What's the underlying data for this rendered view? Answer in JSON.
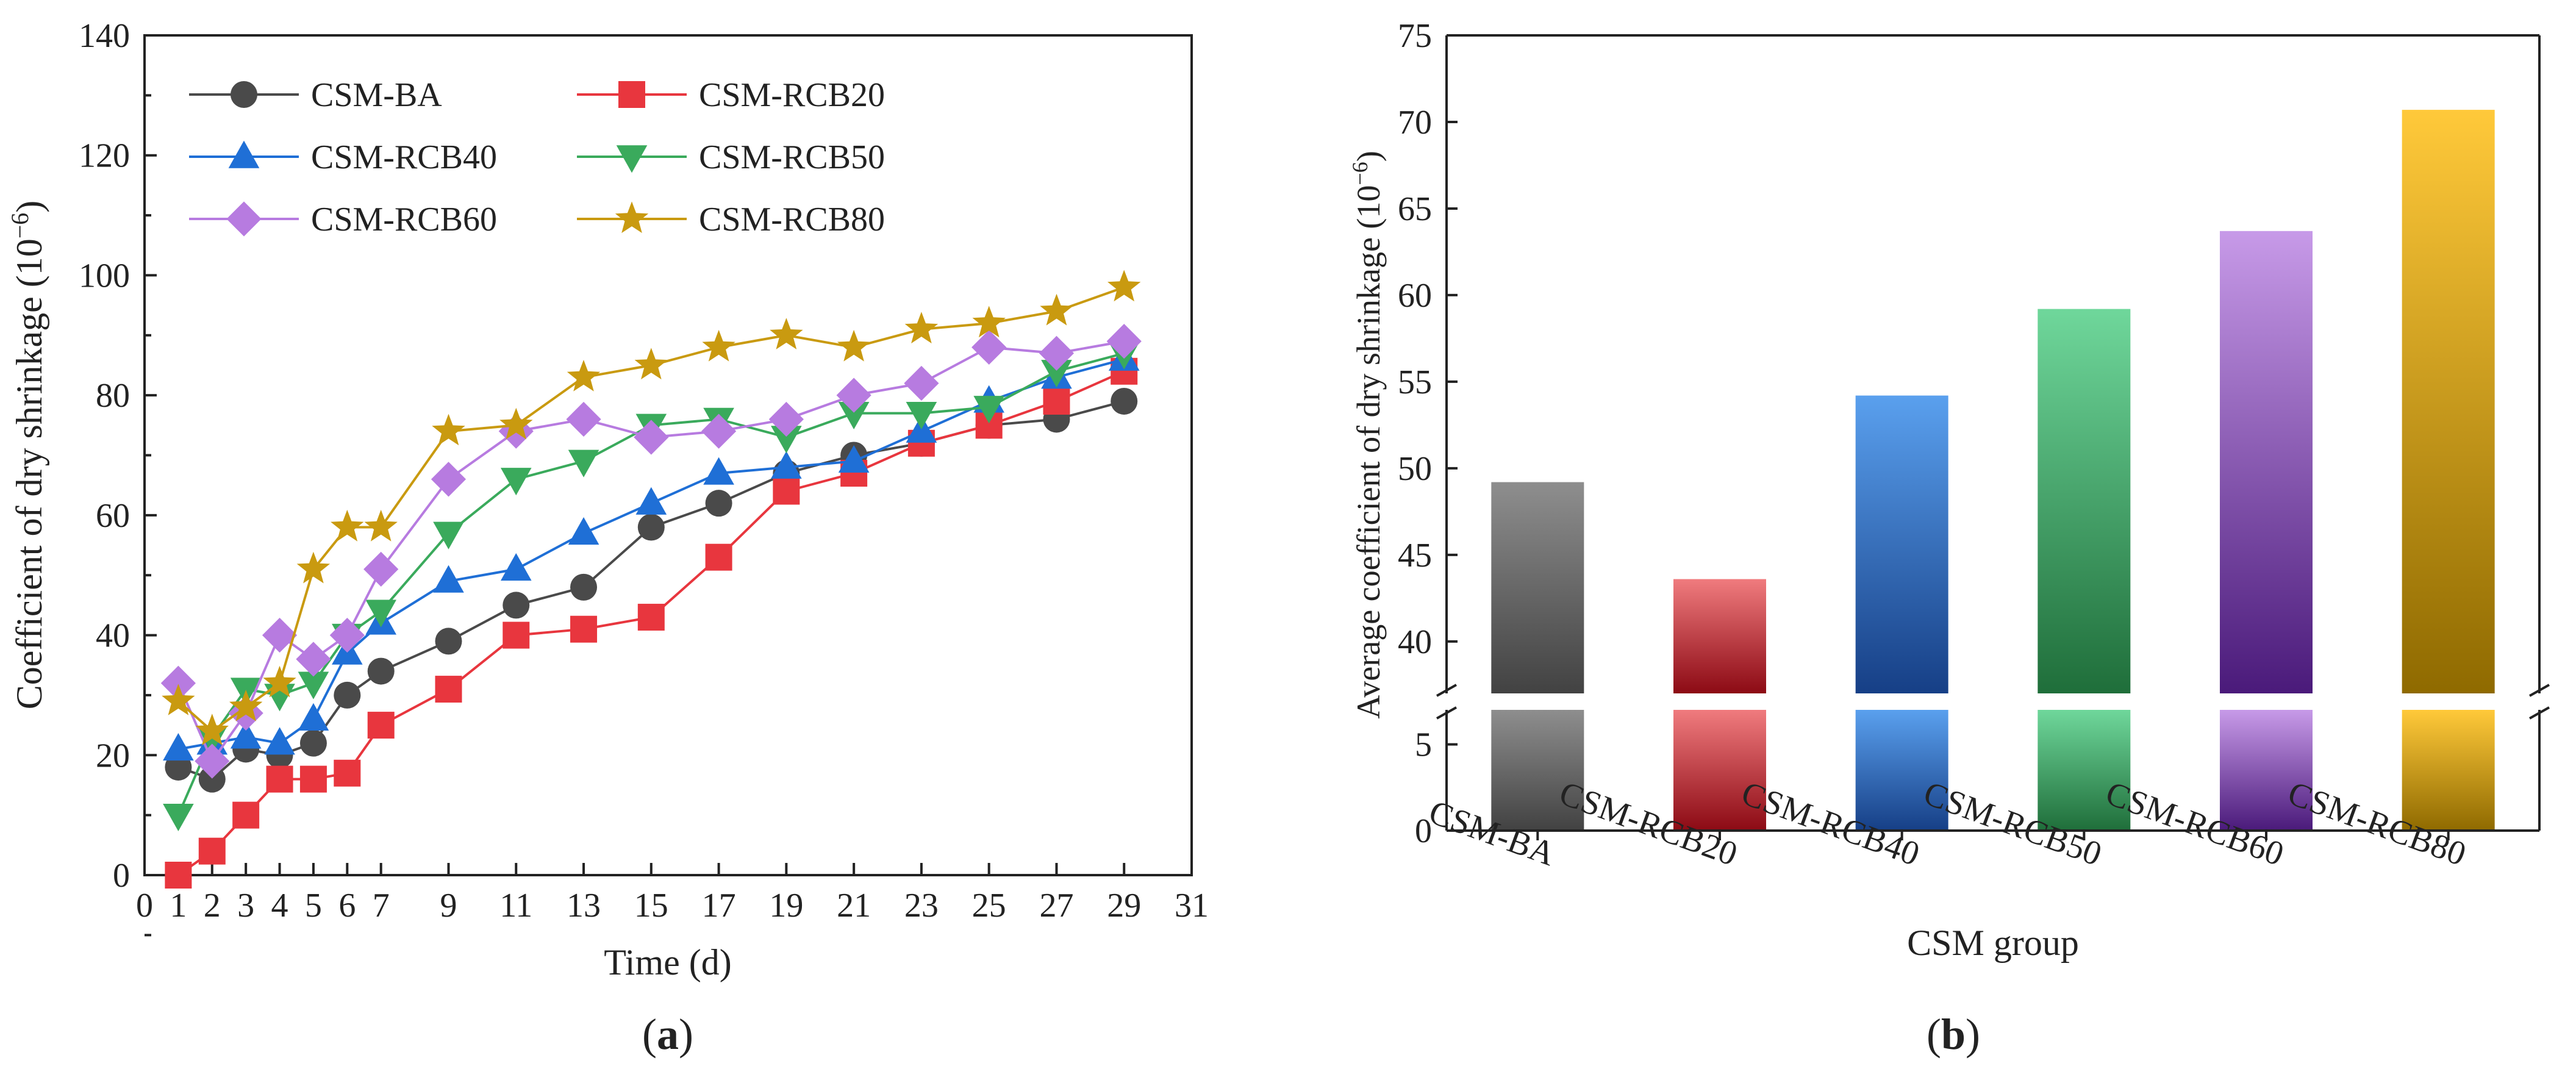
{
  "figure": {
    "panel_a_label_open": "(",
    "panel_a_label_letter": "a",
    "panel_a_label_close": ")",
    "panel_b_label_open": "(",
    "panel_b_label_letter": "b",
    "panel_b_label_close": ")"
  },
  "chart_data": [
    {
      "type": "line",
      "panel": "a",
      "title": "",
      "xlabel": "Time (d)",
      "ylabel_main": "Coefficient of dry shrinkage (10",
      "ylabel_exp": "−6",
      "ylabel_tail": ")",
      "xlim": [
        0,
        31
      ],
      "ylim": [
        0,
        140
      ],
      "xticks": [
        "0",
        "1",
        "2",
        "3",
        "4",
        "5",
        "6",
        "7",
        "9",
        "11",
        "13",
        "15",
        "17",
        "19",
        "21",
        "23",
        "25",
        "27",
        "29",
        "31"
      ],
      "yticks": [
        "0",
        "20",
        "40",
        "60",
        "80",
        "100",
        "120",
        "140"
      ],
      "x": [
        1,
        2,
        3,
        4,
        5,
        6,
        7,
        9,
        11,
        13,
        15,
        17,
        19,
        21,
        23,
        25,
        27,
        29
      ],
      "legend_position": "top-left",
      "series": [
        {
          "name": "CSM-BA",
          "color": "#4a4a4a",
          "marker": "circle",
          "values": [
            18,
            16,
            21,
            20,
            22,
            30,
            34,
            39,
            45,
            48,
            58,
            62,
            67,
            70,
            72,
            75,
            76,
            79
          ]
        },
        {
          "name": "CSM-RCB20",
          "color": "#e8363e",
          "marker": "square",
          "values": [
            0,
            4,
            10,
            16,
            16,
            17,
            25,
            31,
            40,
            41,
            43,
            53,
            64,
            67,
            72,
            75,
            79,
            84
          ]
        },
        {
          "name": "CSM-RCB40",
          "color": "#1f6fd6",
          "marker": "triangle-up",
          "values": [
            21,
            22,
            23,
            22,
            26,
            37,
            42,
            49,
            51,
            57,
            62,
            67,
            68,
            69,
            74,
            79,
            83,
            86
          ]
        },
        {
          "name": "CSM-RCB50",
          "color": "#3aaa5c",
          "marker": "triangle-down",
          "values": [
            10,
            23,
            31,
            30,
            32,
            40,
            44,
            57,
            66,
            69,
            75,
            76,
            73,
            77,
            77,
            78,
            84,
            87
          ]
        },
        {
          "name": "CSM-RCB60",
          "color": "#b77be0",
          "marker": "diamond",
          "values": [
            32,
            19,
            27,
            40,
            36,
            40,
            51,
            66,
            74,
            76,
            73,
            74,
            76,
            80,
            82,
            88,
            87,
            89
          ]
        },
        {
          "name": "CSM-RCB80",
          "color": "#c99a10",
          "marker": "star",
          "values": [
            29,
            24,
            28,
            32,
            51,
            58,
            58,
            74,
            75,
            83,
            85,
            88,
            90,
            88,
            91,
            92,
            94,
            98
          ]
        }
      ]
    },
    {
      "type": "bar",
      "panel": "b",
      "title": "",
      "xlabel": "CSM group",
      "ylabel_main": "Average coefficient of dry shrinkage (10",
      "ylabel_exp": "−6",
      "ylabel_tail": ")",
      "axis_break": {
        "lower_range": [
          0,
          7
        ],
        "upper_range": [
          37,
          75
        ]
      },
      "yticks_lower": [
        "0",
        "5"
      ],
      "yticks_upper": [
        "40",
        "45",
        "50",
        "55",
        "60",
        "65",
        "70",
        "75"
      ],
      "categories": [
        "CSM-BA",
        "CSM-RCB20",
        "CSM-RCB40",
        "CSM-RCB50",
        "CSM-RCB60",
        "CSM-RCB80"
      ],
      "values": [
        49.2,
        43.6,
        54.2,
        59.2,
        63.7,
        70.7
      ],
      "colors": [
        {
          "top": "#8e8e8e",
          "bottom": "#424242"
        },
        {
          "top": "#f07b7e",
          "bottom": "#8c0a14"
        },
        {
          "top": "#5aa0ee",
          "bottom": "#163f86"
        },
        {
          "top": "#6fd79b",
          "bottom": "#1f6e3a"
        },
        {
          "top": "#c79ae8",
          "bottom": "#4a1a7a"
        },
        {
          "top": "#ffc93a",
          "bottom": "#8f6a00"
        }
      ]
    }
  ]
}
